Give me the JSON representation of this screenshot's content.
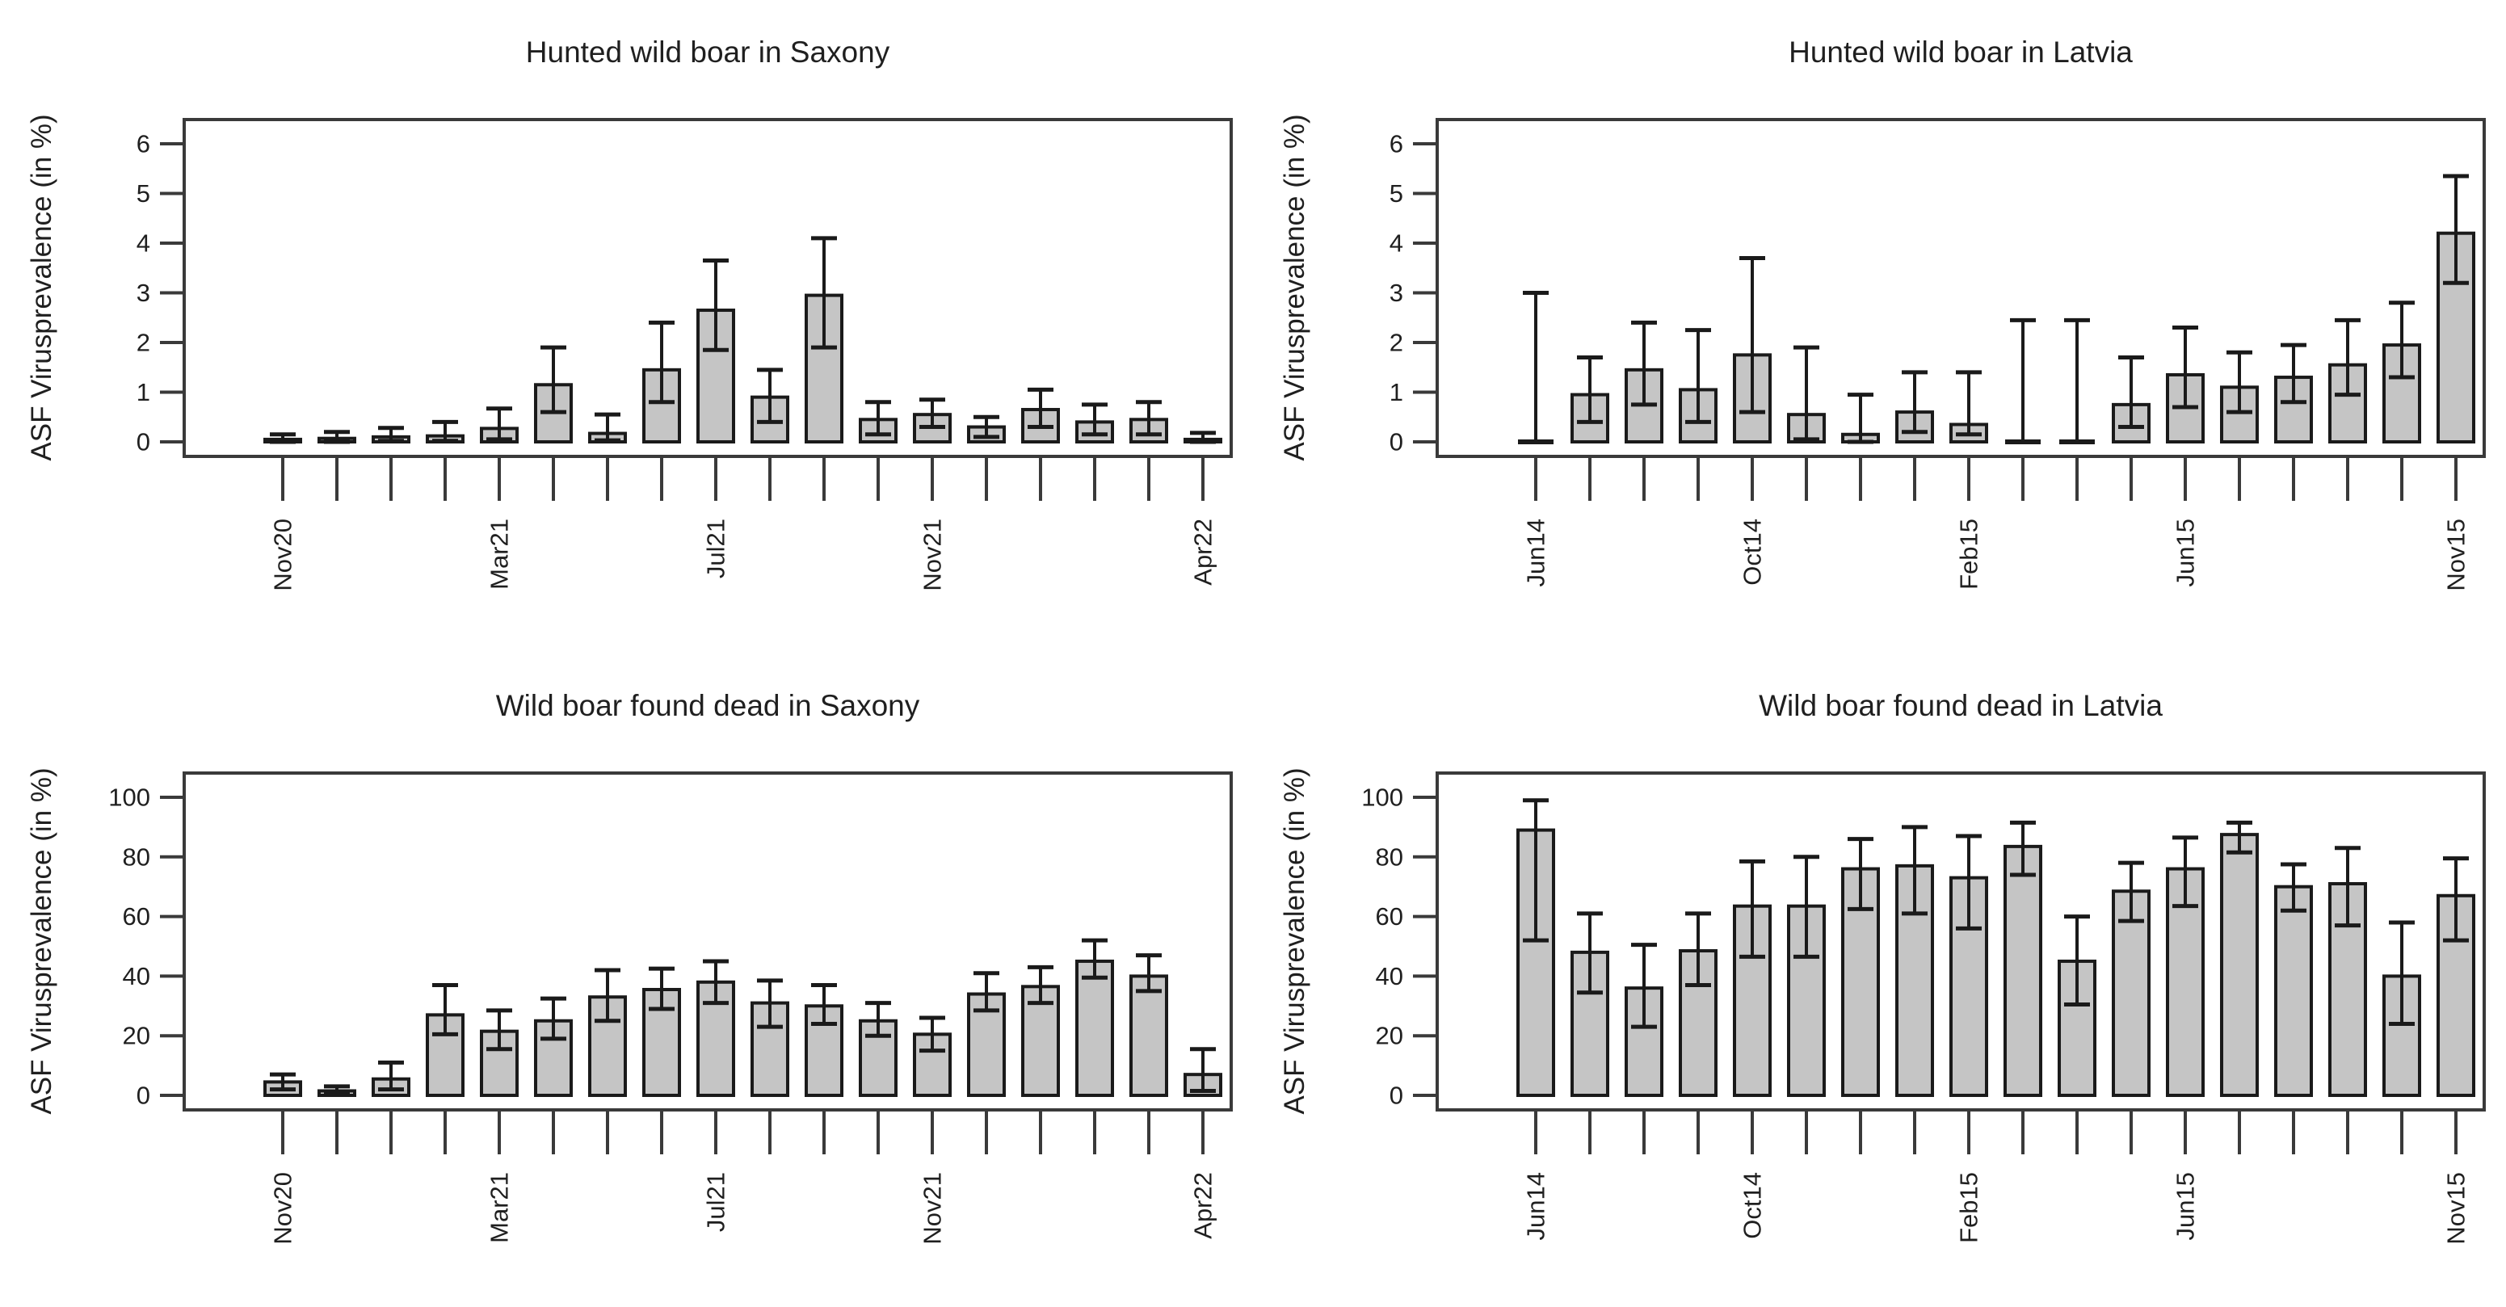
{
  "figure": {
    "background": "#ffffff",
    "bar_fill": "#c5c5c5",
    "bar_stroke": "#1a1a1a",
    "axis_color": "#3a3a3a",
    "text_color": "#1f1f1f"
  },
  "chart_data": [
    {
      "id": "hunted-saxony",
      "type": "bar",
      "title": "Hunted wild boar in Saxony",
      "ylabel": "ASF Virusprevalence (in %)",
      "xlabel": "",
      "ylim": [
        0,
        6
      ],
      "yticks": [
        0,
        1,
        2,
        3,
        4,
        5,
        6
      ],
      "grid": false,
      "legend": "none",
      "error_bars": true,
      "n_bars": 18,
      "x_tick_labels": [
        {
          "tick": 1,
          "label": "Nov20"
        },
        {
          "tick": 5,
          "label": "Mar21"
        },
        {
          "tick": 9,
          "label": "Jul21"
        },
        {
          "tick": 13,
          "label": "Nov21"
        },
        {
          "tick": 18,
          "label": "Apr22"
        }
      ],
      "values": [
        0.05,
        0.07,
        0.1,
        0.12,
        0.27,
        1.15,
        0.17,
        1.45,
        2.65,
        0.9,
        2.95,
        0.45,
        0.55,
        0.3,
        0.65,
        0.4,
        0.45,
        0.05
      ],
      "ci_low": [
        0,
        0,
        0.02,
        0.02,
        0.05,
        0.6,
        0.03,
        0.8,
        1.85,
        0.4,
        1.9,
        0.15,
        0.3,
        0.1,
        0.3,
        0.15,
        0.15,
        0
      ],
      "ci_high": [
        0.15,
        0.2,
        0.28,
        0.4,
        0.67,
        1.9,
        0.55,
        2.4,
        3.65,
        1.45,
        4.1,
        0.8,
        0.85,
        0.5,
        1.05,
        0.75,
        0.8,
        0.18
      ]
    },
    {
      "id": "hunted-latvia",
      "type": "bar",
      "title": "Hunted wild boar in Latvia",
      "ylabel": "ASF Virusprevalence (in %)",
      "xlabel": "",
      "ylim": [
        0,
        6
      ],
      "yticks": [
        0,
        1,
        2,
        3,
        4,
        5,
        6
      ],
      "grid": false,
      "legend": "none",
      "error_bars": true,
      "n_bars": 18,
      "x_tick_labels": [
        {
          "tick": 1,
          "label": "Jun14"
        },
        {
          "tick": 5,
          "label": "Oct14"
        },
        {
          "tick": 9,
          "label": "Feb15"
        },
        {
          "tick": 13,
          "label": "Jun15"
        },
        {
          "tick": 18,
          "label": "Nov15"
        }
      ],
      "values": [
        0,
        0.95,
        1.45,
        1.05,
        1.75,
        0.55,
        0.15,
        0.6,
        0.35,
        0,
        0,
        0.75,
        1.35,
        1.1,
        1.3,
        1.55,
        1.95,
        4.2
      ],
      "ci_low": [
        0,
        0.4,
        0.75,
        0.4,
        0.6,
        0.05,
        0,
        0.2,
        0.15,
        0,
        0,
        0.3,
        0.7,
        0.6,
        0.8,
        0.95,
        1.3,
        3.2
      ],
      "ci_high": [
        3.0,
        1.7,
        2.4,
        2.25,
        3.7,
        1.9,
        0.95,
        1.4,
        1.4,
        2.45,
        2.45,
        1.7,
        2.3,
        1.8,
        1.95,
        2.45,
        2.8,
        5.35
      ]
    },
    {
      "id": "dead-saxony",
      "type": "bar",
      "title": "Wild boar found dead in Saxony",
      "ylabel": "ASF Virusprevalence (in %)",
      "xlabel": "",
      "ylim": [
        0,
        100
      ],
      "yticks": [
        0,
        20,
        40,
        60,
        80,
        100
      ],
      "grid": false,
      "legend": "none",
      "error_bars": true,
      "n_bars": 18,
      "x_tick_labels": [
        {
          "tick": 1,
          "label": "Nov20"
        },
        {
          "tick": 5,
          "label": "Mar21"
        },
        {
          "tick": 9,
          "label": "Jul21"
        },
        {
          "tick": 13,
          "label": "Nov21"
        },
        {
          "tick": 18,
          "label": "Apr22"
        }
      ],
      "values": [
        4.5,
        1.5,
        5.5,
        27,
        21.5,
        25,
        33,
        35.5,
        38,
        31,
        30,
        25,
        20.5,
        34,
        36.5,
        45,
        40,
        7
      ],
      "ci_low": [
        2,
        0.5,
        2,
        20.5,
        15.5,
        19,
        25,
        29,
        31,
        23,
        24,
        20,
        15,
        28.5,
        31,
        39.5,
        35,
        1.5
      ],
      "ci_high": [
        7,
        3,
        11,
        37,
        28.5,
        32.5,
        42,
        42.5,
        45,
        38.5,
        37,
        31,
        26,
        41,
        43,
        52,
        47,
        15.5
      ]
    },
    {
      "id": "dead-latvia",
      "type": "bar",
      "title": "Wild boar found dead in Latvia",
      "ylabel": "ASF Virusprevalence (in %)",
      "xlabel": "",
      "ylim": [
        0,
        100
      ],
      "yticks": [
        0,
        20,
        40,
        60,
        80,
        100
      ],
      "grid": false,
      "legend": "none",
      "error_bars": true,
      "n_bars": 18,
      "x_tick_labels": [
        {
          "tick": 1,
          "label": "Jun14"
        },
        {
          "tick": 5,
          "label": "Oct14"
        },
        {
          "tick": 9,
          "label": "Feb15"
        },
        {
          "tick": 13,
          "label": "Jun15"
        },
        {
          "tick": 18,
          "label": "Nov15"
        }
      ],
      "values": [
        89,
        48,
        36,
        48.5,
        63.5,
        63.5,
        76,
        77,
        73,
        83.5,
        45,
        68.5,
        76,
        87.5,
        70,
        71,
        40,
        67
      ],
      "ci_low": [
        52,
        34.5,
        23,
        37,
        46.5,
        46.5,
        62.5,
        61,
        56,
        74,
        30.5,
        58.5,
        63.5,
        81.5,
        62,
        57,
        24,
        52
      ],
      "ci_high": [
        99,
        61,
        50.5,
        61,
        78.5,
        80,
        86,
        90,
        87,
        91.5,
        60,
        78,
        86.5,
        91.5,
        77.5,
        83,
        58,
        79.5
      ]
    }
  ]
}
